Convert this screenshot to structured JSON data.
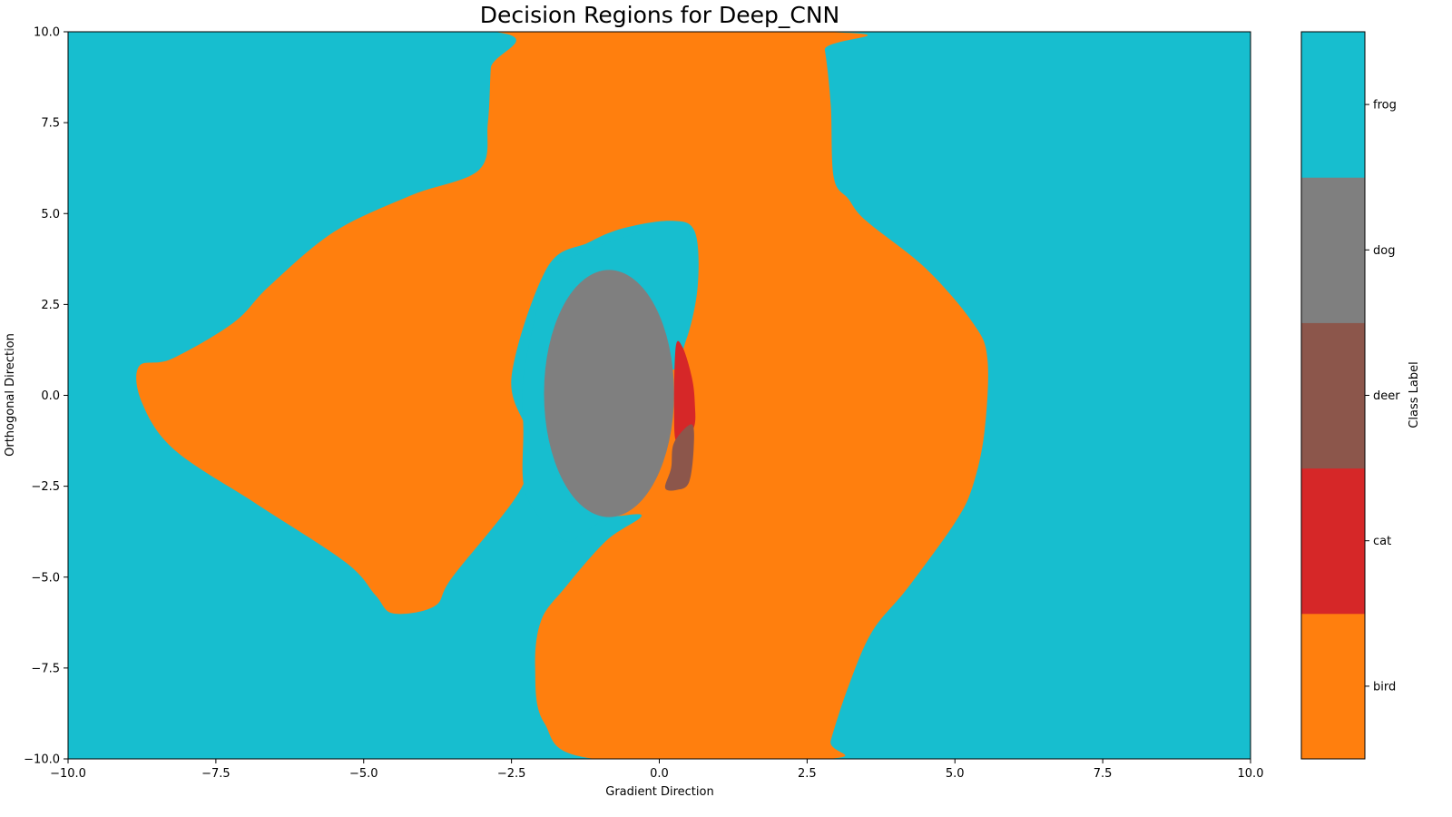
{
  "chart_data": {
    "type": "heatmap",
    "title": "Decision Regions for Deep_CNN",
    "xlabel": "Gradient Direction",
    "ylabel": "Orthogonal Direction",
    "xlim": [
      -10.0,
      10.0
    ],
    "ylim": [
      -10.0,
      10.0
    ],
    "x_ticks": [
      -10.0,
      -7.5,
      -5.0,
      -2.5,
      0.0,
      2.5,
      5.0,
      7.5,
      10.0
    ],
    "y_ticks": [
      -10.0,
      -7.5,
      -5.0,
      -2.5,
      0.0,
      2.5,
      5.0,
      7.5,
      10.0
    ],
    "x_tick_labels": [
      "−10.0",
      "−7.5",
      "−5.0",
      "−2.5",
      "0.0",
      "2.5",
      "5.0",
      "7.5",
      "10.0"
    ],
    "y_tick_labels": [
      "−10.0",
      "−7.5",
      "−5.0",
      "−2.5",
      "0.0",
      "2.5",
      "5.0",
      "7.5",
      "10.0"
    ],
    "grid": false,
    "background_class": "frog",
    "regions": [
      {
        "class": "bird",
        "boundary": [
          [
            -8.1,
            10
          ],
          [
            -2.8,
            10
          ],
          [
            -2.85,
            9
          ],
          [
            -2.9,
            7.5
          ],
          [
            -3.05,
            6.2
          ],
          [
            -4.2,
            5.5
          ],
          [
            -5.5,
            4.5
          ],
          [
            -6.6,
            3.0
          ],
          [
            -7.2,
            2.0
          ],
          [
            -8.25,
            1.0
          ],
          [
            -8.8,
            0.8
          ],
          [
            -8.75,
            -0.2
          ],
          [
            -8.2,
            -1.5
          ],
          [
            -6.8,
            -3.0
          ],
          [
            -5.3,
            -4.6
          ],
          [
            -4.8,
            -5.5
          ],
          [
            -4.5,
            -6.0
          ],
          [
            -3.8,
            -5.8
          ],
          [
            -3.5,
            -5.0
          ],
          [
            -2.35,
            -2.6
          ],
          [
            -2.2,
            -1.2
          ],
          [
            -2.5,
            0.5
          ],
          [
            -1.9,
            3.5
          ],
          [
            -1.2,
            4.2
          ],
          [
            -0.6,
            4.6
          ],
          [
            0.2,
            4.8
          ],
          [
            0.6,
            4.5
          ],
          [
            0.65,
            3.0
          ],
          [
            0.45,
            1.5
          ],
          [
            0.15,
            0.8
          ],
          [
            -0.7,
            3.5
          ],
          [
            -1.9,
            2.0
          ],
          [
            -1.85,
            -1.0
          ],
          [
            -1.4,
            -2.6
          ],
          [
            -1.0,
            -3.3
          ],
          [
            -0.3,
            -3.3
          ],
          [
            -0.9,
            -4.0
          ],
          [
            -1.6,
            -5.3
          ],
          [
            -2.0,
            -6.2
          ],
          [
            -2.1,
            -7.5
          ],
          [
            -1.95,
            -9.0
          ],
          [
            -1.1,
            -10
          ],
          [
            2.85,
            -10
          ],
          [
            2.9,
            -9.5
          ],
          [
            3.2,
            -8.0
          ],
          [
            3.6,
            -6.5
          ],
          [
            4.2,
            -5.3
          ],
          [
            5.0,
            -3.5
          ],
          [
            5.3,
            -2.5
          ],
          [
            5.5,
            -1.0
          ],
          [
            5.55,
            1.0
          ],
          [
            5.3,
            2.0
          ],
          [
            4.5,
            3.5
          ],
          [
            3.5,
            4.8
          ],
          [
            3.2,
            5.4
          ],
          [
            2.95,
            6.0
          ],
          [
            2.9,
            8.0
          ],
          [
            2.8,
            9.5
          ],
          [
            2.7,
            10
          ]
        ]
      },
      {
        "class": "frog",
        "boundary": [
          [
            -1.9,
            3.4
          ],
          [
            -1.2,
            4.0
          ],
          [
            -0.5,
            4.4
          ],
          [
            0.15,
            4.75
          ],
          [
            0.5,
            4.5
          ],
          [
            0.6,
            3.0
          ],
          [
            0.4,
            1.4
          ],
          [
            0.1,
            0.5
          ],
          [
            -0.3,
            -2.5
          ],
          [
            -0.6,
            -3.0
          ],
          [
            -1.3,
            -3.8
          ],
          [
            -1.6,
            -4.0
          ],
          [
            -2.1,
            -3.2
          ],
          [
            -2.3,
            -2.4
          ],
          [
            -2.3,
            -1.0
          ],
          [
            -2.3,
            0.5
          ],
          [
            -2.05,
            2.5
          ]
        ]
      },
      {
        "class": "dog",
        "ellipse": {
          "cx": -0.85,
          "cy": 0.05,
          "rx": 1.1,
          "ry": 3.4
        }
      },
      {
        "class": "cat",
        "boundary": [
          [
            0.28,
            1.35
          ],
          [
            0.4,
            1.3
          ],
          [
            0.55,
            0.5
          ],
          [
            0.6,
            -0.2
          ],
          [
            0.58,
            -0.9
          ],
          [
            0.3,
            -1.3
          ],
          [
            0.25,
            -0.4
          ]
        ]
      },
      {
        "class": "deer",
        "boundary": [
          [
            0.25,
            -1.3
          ],
          [
            0.55,
            -0.8
          ],
          [
            0.58,
            -1.5
          ],
          [
            0.5,
            -2.4
          ],
          [
            0.3,
            -2.6
          ],
          [
            0.1,
            -2.55
          ],
          [
            0.2,
            -2.0
          ]
        ]
      }
    ],
    "colorbar": {
      "label": "Class Label",
      "classes": [
        {
          "name": "bird",
          "color": "#ff7f0e"
        },
        {
          "name": "cat",
          "color": "#d62728"
        },
        {
          "name": "deer",
          "color": "#8c564b"
        },
        {
          "name": "dog",
          "color": "#7f7f7f"
        },
        {
          "name": "frog",
          "color": "#17becf"
        }
      ]
    }
  }
}
